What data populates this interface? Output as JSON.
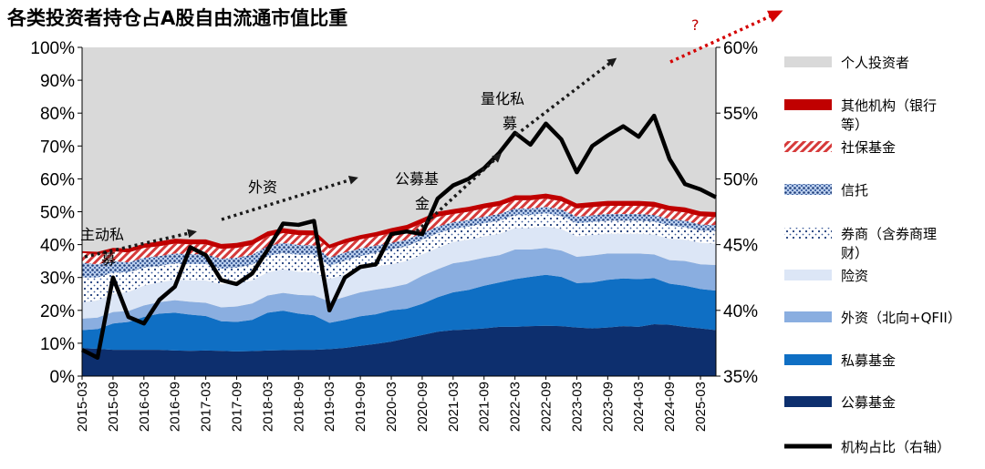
{
  "chart_data": {
    "type": "area",
    "title": "各类投资者持仓占A股自由流通市值比重",
    "x": [
      "2015-03",
      "2015-06",
      "2015-09",
      "2015-12",
      "2016-03",
      "2016-06",
      "2016-09",
      "2016-12",
      "2017-03",
      "2017-06",
      "2017-09",
      "2017-12",
      "2018-03",
      "2018-06",
      "2018-09",
      "2018-12",
      "2019-03",
      "2019-06",
      "2019-09",
      "2019-12",
      "2020-03",
      "2020-06",
      "2020-09",
      "2020-12",
      "2021-03",
      "2021-06",
      "2021-09",
      "2021-12",
      "2022-03",
      "2022-06",
      "2022-09",
      "2022-12",
      "2023-03",
      "2023-06",
      "2023-09",
      "2023-12",
      "2024-03",
      "2024-06",
      "2024-09",
      "2024-12",
      "2025-03",
      "2025-06"
    ],
    "x_tick_labels": [
      "2015-03",
      "2015-09",
      "2016-03",
      "2016-09",
      "2017-03",
      "2017-09",
      "2018-03",
      "2018-09",
      "2019-03",
      "2019-09",
      "2020-03",
      "2020-09",
      "2021-03",
      "2021-09",
      "2022-03",
      "2022-09",
      "2023-03",
      "2023-09",
      "2024-03",
      "2024-09",
      "2025-03"
    ],
    "left_axis": {
      "ylim": [
        0,
        100
      ],
      "ticks": [
        "0%",
        "10%",
        "20%",
        "30%",
        "40%",
        "50%",
        "60%",
        "70%",
        "80%",
        "90%",
        "100%"
      ]
    },
    "right_axis": {
      "ylim": [
        35,
        60
      ],
      "ticks": [
        "35%",
        "40%",
        "45%",
        "50%",
        "55%",
        "60%"
      ]
    },
    "series": [
      {
        "name": "公募基金",
        "color": "#0d2f6e",
        "values": [
          8.5,
          8.3,
          8.0,
          8.0,
          8.0,
          8.0,
          7.8,
          7.7,
          7.8,
          7.7,
          7.5,
          7.6,
          7.8,
          7.9,
          8.0,
          8.0,
          8.2,
          8.6,
          9.2,
          9.8,
          10.5,
          11.5,
          12.5,
          13.5,
          14.0,
          14.2,
          14.5,
          15.0,
          15.0,
          15.2,
          15.3,
          15.2,
          14.8,
          14.5,
          14.8,
          15.2,
          15.0,
          15.8,
          15.6,
          15.0,
          14.5,
          14.0
        ]
      },
      {
        "name": "私募基金",
        "color": "#0f6fc4",
        "values": [
          5.5,
          6.0,
          8.0,
          8.5,
          10.0,
          11.0,
          11.5,
          11.0,
          10.5,
          9.0,
          9.0,
          9.5,
          11.5,
          12.0,
          11.0,
          10.5,
          8.0,
          8.5,
          9.0,
          9.0,
          9.5,
          9.0,
          9.5,
          10.5,
          11.5,
          12.0,
          13.0,
          13.5,
          14.5,
          15.0,
          15.5,
          15.0,
          13.5,
          14.0,
          14.5,
          14.5,
          14.5,
          14.0,
          12.5,
          12.5,
          12.0,
          12.0
        ]
      },
      {
        "name": "外资（北向+QFII）",
        "color": "#8aaee0",
        "values": [
          3.5,
          3.5,
          3.5,
          3.3,
          3.5,
          3.5,
          3.8,
          3.9,
          4.0,
          4.2,
          4.7,
          5.0,
          5.2,
          5.4,
          5.7,
          6.0,
          6.5,
          7.0,
          7.3,
          7.5,
          7.0,
          7.5,
          8.5,
          8.5,
          8.8,
          8.8,
          8.5,
          8.3,
          9.0,
          8.3,
          8.2,
          8.0,
          8.0,
          8.2,
          8.0,
          7.6,
          7.8,
          7.2,
          7.2,
          7.5,
          7.5,
          7.8
        ]
      },
      {
        "name": "险资",
        "color": "#dce6f6",
        "values": [
          5.0,
          5.2,
          5.5,
          5.8,
          6.0,
          6.0,
          6.2,
          6.5,
          6.8,
          7.0,
          7.0,
          7.0,
          7.0,
          7.2,
          7.0,
          7.0,
          6.8,
          6.8,
          7.0,
          7.0,
          7.0,
          7.0,
          6.5,
          6.5,
          6.5,
          6.5,
          6.5,
          6.5,
          6.5,
          6.5,
          6.5,
          6.5,
          6.2,
          6.2,
          6.0,
          6.0,
          6.0,
          6.0,
          6.5,
          6.5,
          6.5,
          6.5
        ]
      },
      {
        "name": "券商（含券商理财）",
        "color": "#1f3d7a",
        "pattern": "dots",
        "values": [
          7.5,
          7.0,
          6.5,
          6.0,
          5.5,
          5.0,
          5.0,
          5.0,
          5.0,
          4.8,
          4.8,
          4.8,
          5.0,
          5.0,
          5.2,
          5.5,
          4.0,
          4.2,
          4.0,
          4.2,
          4.5,
          4.5,
          4.5,
          4.5,
          4.0,
          4.0,
          4.0,
          4.0,
          4.0,
          4.0,
          4.0,
          4.0,
          4.0,
          4.0,
          4.0,
          4.0,
          4.0,
          4.0,
          4.0,
          3.8,
          3.8,
          3.8
        ]
      },
      {
        "name": "信托",
        "color": "#4a6fb0",
        "pattern": "crosshatch",
        "values": [
          4.5,
          4.0,
          3.5,
          3.0,
          3.0,
          3.0,
          3.0,
          3.0,
          3.0,
          3.0,
          3.0,
          3.0,
          3.0,
          3.0,
          3.0,
          2.8,
          2.5,
          2.5,
          2.3,
          2.2,
          2.0,
          2.0,
          2.0,
          2.0,
          2.0,
          2.0,
          2.0,
          2.0,
          2.0,
          2.0,
          2.0,
          2.0,
          2.0,
          2.0,
          2.0,
          2.0,
          2.0,
          2.0,
          2.0,
          2.0,
          1.8,
          1.8
        ]
      },
      {
        "name": "社保基金",
        "color": "#e05050",
        "pattern": "hatch",
        "values": [
          3.0,
          3.0,
          3.0,
          3.0,
          3.0,
          3.0,
          3.0,
          3.0,
          3.0,
          3.0,
          3.0,
          3.0,
          3.0,
          3.0,
          3.0,
          3.0,
          2.8,
          2.8,
          2.8,
          2.8,
          3.0,
          3.0,
          3.0,
          3.0,
          2.5,
          2.5,
          2.5,
          2.5,
          2.5,
          2.5,
          2.5,
          2.5,
          2.5,
          2.5,
          2.5,
          2.5,
          2.5,
          2.5,
          2.5,
          2.5,
          2.5,
          2.5
        ]
      },
      {
        "name": "其他机构（银行等）",
        "color": "#c00000",
        "values": [
          0.5,
          0.8,
          1.0,
          1.2,
          1.3,
          1.5,
          1.5,
          1.5,
          1.5,
          1.5,
          1.5,
          1.5,
          1.5,
          1.5,
          1.5,
          1.5,
          1.2,
          1.3,
          1.3,
          1.3,
          1.5,
          1.5,
          1.5,
          1.5,
          1.5,
          1.5,
          1.5,
          1.5,
          1.5,
          1.5,
          1.5,
          1.5,
          1.5,
          1.5,
          1.5,
          1.5,
          1.5,
          1.5,
          1.5,
          1.5,
          1.5,
          1.5
        ]
      },
      {
        "name": "个人投资者",
        "color": "#d9d9d9",
        "values": "remainder to 100%"
      }
    ],
    "line": {
      "name": "机构占比（右轴）",
      "axis": "right",
      "color": "#000000",
      "values": [
        37.0,
        36.4,
        42.5,
        39.5,
        39.0,
        40.8,
        41.8,
        44.8,
        44.2,
        42.3,
        42.0,
        42.8,
        44.6,
        46.6,
        46.5,
        46.8,
        40.0,
        42.5,
        43.3,
        43.5,
        45.8,
        46.0,
        45.8,
        48.5,
        49.5,
        50.0,
        50.8,
        52.0,
        53.5,
        52.6,
        54.2,
        53.0,
        50.5,
        52.5,
        53.3,
        54.0,
        53.2,
        54.8,
        51.5,
        49.6,
        49.2,
        48.6
      ]
    },
    "annotations": [
      {
        "text": "主动私",
        "line2": "募"
      },
      {
        "text": "外资"
      },
      {
        "text": "公募基",
        "line2": "金"
      },
      {
        "text": "量化私",
        "line2": "募"
      },
      {
        "text": "?"
      }
    ]
  },
  "legend": [
    {
      "label": "个人投资者",
      "swatch": "#d9d9d9"
    },
    {
      "label": "其他机构（银行",
      "label2": "等）",
      "swatch": "#c00000"
    },
    {
      "label": "社保基金",
      "swatch": "hatch"
    },
    {
      "label": "信托",
      "swatch": "crosshatch"
    },
    {
      "label": "券商（含券商理",
      "label2": "财）",
      "swatch": "dots"
    },
    {
      "label": "险资",
      "swatch": "#dce6f6"
    },
    {
      "label": "外资（北向+QFII）",
      "swatch": "#8aaee0"
    },
    {
      "label": "私募基金",
      "swatch": "#0f6fc4"
    },
    {
      "label": "公募基金",
      "swatch": "#0d2f6e"
    },
    {
      "label": "机构占比（右轴）",
      "swatch": "line"
    }
  ]
}
